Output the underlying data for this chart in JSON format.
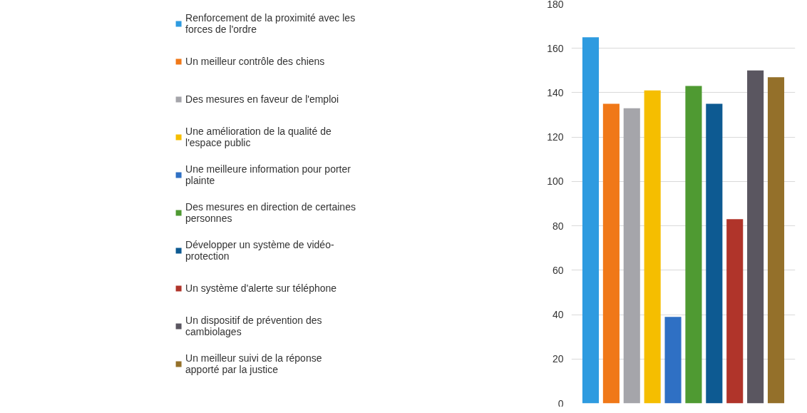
{
  "chart_data": {
    "type": "bar",
    "categories": [
      null
    ],
    "ylim": [
      0,
      180
    ],
    "yticks": [
      0,
      20,
      40,
      60,
      80,
      100,
      120,
      140,
      160,
      180
    ],
    "grid": "y",
    "legend": "left",
    "series": [
      {
        "name": "Renforcement de la proximité avec les forces de l'ordre",
        "color": "#2e9be0",
        "values": [
          165
        ]
      },
      {
        "name": "Un meilleur contrôle des chiens",
        "color": "#f07818",
        "values": [
          135
        ]
      },
      {
        "name": "Des mesures en faveur de l'emploi",
        "color": "#a5a5aa",
        "values": [
          133
        ]
      },
      {
        "name": "Une amélioration de la qualité de l'espace public",
        "color": "#f5be00",
        "values": [
          141
        ]
      },
      {
        "name": "Une meilleure information pour porter plainte",
        "color": "#2f70c4",
        "values": [
          39
        ]
      },
      {
        "name": "Des mesures en direction de certaines personnes",
        "color": "#4f9a32",
        "values": [
          143
        ]
      },
      {
        "name": "Développer un système de vidéo-protection",
        "color": "#0d5a92",
        "values": [
          135
        ]
      },
      {
        "name": "Un système d'alerte sur téléphone",
        "color": "#b0342a",
        "values": [
          83
        ]
      },
      {
        "name": "Un dispositif de prévention des cambiolages",
        "color": "#5a5660",
        "values": [
          150
        ]
      },
      {
        "name": "Un meilleur suivi de la réponse apporté par la justice",
        "color": "#94702a",
        "values": [
          147
        ]
      }
    ]
  }
}
